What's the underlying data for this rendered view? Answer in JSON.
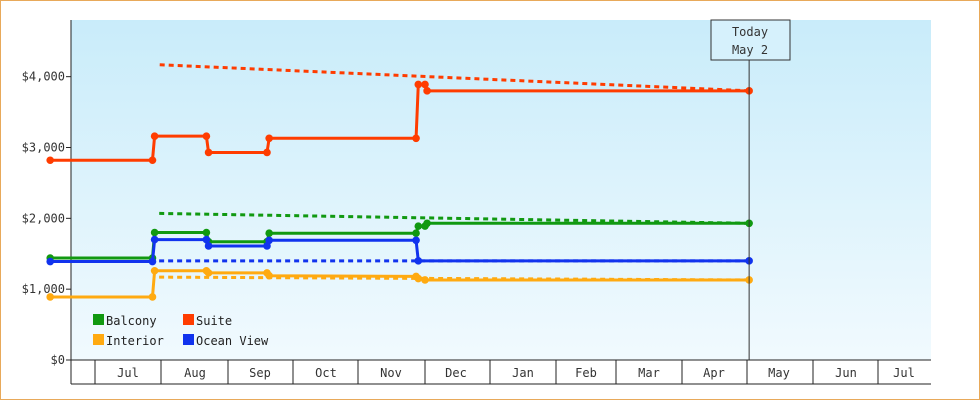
{
  "chart_data": {
    "type": "line",
    "title": "",
    "xlabel": "",
    "ylabel": "",
    "ylim": [
      0,
      4800
    ],
    "y_ticks": [
      0,
      1000,
      2000,
      3000,
      4000
    ],
    "y_tick_labels": [
      "$0",
      "$1,000",
      "$2,000",
      "$3,000",
      "$4,000"
    ],
    "x_tick_labels": [
      "Jul",
      "Aug",
      "Sep",
      "Oct",
      "Nov",
      "Dec",
      "Jan",
      "Feb",
      "Mar",
      "Apr",
      "May",
      "Jun",
      "Jul"
    ],
    "today_marker": {
      "line1": "Today",
      "line2": "May 2"
    },
    "legend_position": "bottom-left",
    "grid": false,
    "background": "light blue gradient",
    "series": [
      {
        "name": "Suite",
        "color": "#ff3c00",
        "points": [
          [
            "Jun 10",
            2820
          ],
          [
            "Jul 28",
            2820
          ],
          [
            "Jul 29",
            3160
          ],
          [
            "Aug 22",
            3160
          ],
          [
            "Aug 23",
            2930
          ],
          [
            "Sep 19",
            2930
          ],
          [
            "Sep 20",
            3130
          ],
          [
            "Nov 27",
            3130
          ],
          [
            "Nov 28",
            3890
          ],
          [
            "Dec 1",
            3890
          ],
          [
            "Dec 2",
            3800
          ],
          [
            "May 2",
            3800
          ]
        ],
        "forecast": [
          [
            "May 2",
            3800
          ],
          [
            "Jul 30",
            4170
          ]
        ]
      },
      {
        "name": "Balcony",
        "color": "#119911",
        "points": [
          [
            "Jun 10",
            1440
          ],
          [
            "Jul 28",
            1440
          ],
          [
            "Jul 29",
            1800
          ],
          [
            "Aug 22",
            1800
          ],
          [
            "Aug 23",
            1670
          ],
          [
            "Sep 19",
            1670
          ],
          [
            "Sep 20",
            1790
          ],
          [
            "Nov 27",
            1790
          ],
          [
            "Nov 28",
            1890
          ],
          [
            "Dec 1",
            1890
          ],
          [
            "Dec 2",
            1930
          ],
          [
            "May 2",
            1930
          ]
        ],
        "forecast": [
          [
            "May 2",
            1930
          ],
          [
            "Jul 30",
            2070
          ]
        ]
      },
      {
        "name": "Ocean View",
        "color": "#1133ee",
        "points": [
          [
            "Jun 10",
            1390
          ],
          [
            "Jul 28",
            1390
          ],
          [
            "Jul 29",
            1700
          ],
          [
            "Aug 22",
            1700
          ],
          [
            "Aug 23",
            1610
          ],
          [
            "Sep 19",
            1610
          ],
          [
            "Sep 20",
            1690
          ],
          [
            "Nov 27",
            1690
          ],
          [
            "Nov 28",
            1400
          ],
          [
            "May 2",
            1400
          ]
        ],
        "forecast": [
          [
            "May 2",
            1400
          ],
          [
            "Jul 30",
            1400
          ]
        ]
      },
      {
        "name": "Interior",
        "color": "#ffaa11",
        "points": [
          [
            "Jun 10",
            890
          ],
          [
            "Jul 28",
            890
          ],
          [
            "Jul 29",
            1260
          ],
          [
            "Aug 22",
            1260
          ],
          [
            "Aug 23",
            1230
          ],
          [
            "Sep 19",
            1230
          ],
          [
            "Sep 20",
            1190
          ],
          [
            "Nov 27",
            1180
          ],
          [
            "Nov 28",
            1150
          ],
          [
            "Dec 1",
            1130
          ],
          [
            "May 2",
            1130
          ]
        ],
        "forecast": [
          [
            "May 2",
            1130
          ],
          [
            "Jul 30",
            1170
          ]
        ]
      }
    ],
    "legend": [
      {
        "name": "Balcony",
        "color": "#119911"
      },
      {
        "name": "Suite",
        "color": "#ff3c00"
      },
      {
        "name": "Interior",
        "color": "#ffaa11"
      },
      {
        "name": "Ocean View",
        "color": "#1133ee"
      }
    ]
  }
}
